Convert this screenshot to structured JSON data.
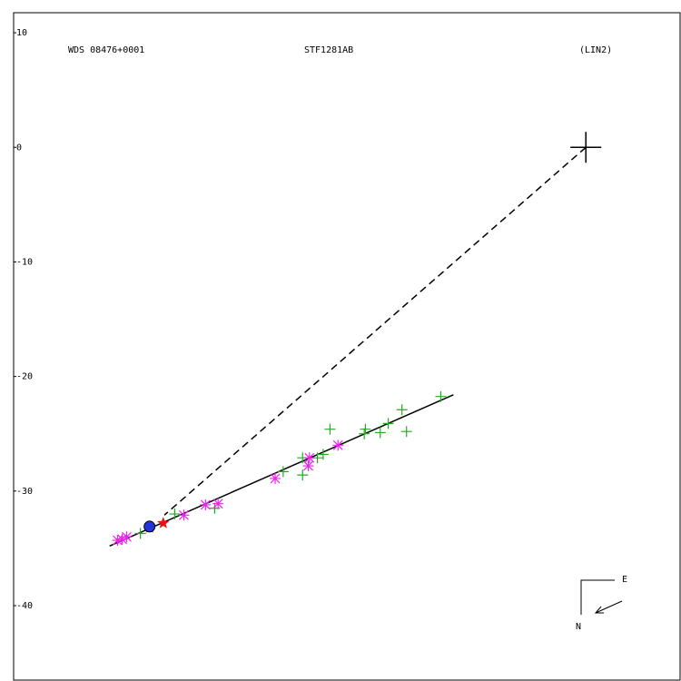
{
  "chart_data": {
    "type": "scatter",
    "labels": [
      "WDS 08476+0001",
      "STF1281AB",
      "(LIN2)"
    ],
    "xlim": [
      -50.1,
      8.25
    ],
    "ylim": [
      -46.5,
      11.75
    ],
    "yticks": [
      10,
      0,
      -10,
      -20,
      -30,
      -40
    ],
    "primary": {
      "x": 0,
      "y": 0,
      "color": "#000000"
    },
    "series": [
      {
        "marker": "plus",
        "color": "#22aa22",
        "x": [
          -12.7,
          -16.1,
          -15.7,
          -17.3,
          -18.0,
          -19.3,
          -19.4,
          -22.4,
          -23.0,
          -23.5,
          -24.8,
          -24.8,
          -26.5,
          -32.5,
          -36.0,
          -39.0
        ],
        "values": [
          -21.75,
          -22.9,
          -24.8,
          -24.1,
          -24.9,
          -24.6,
          -25.0,
          -24.6,
          -26.8,
          -27.1,
          -27.1,
          -28.6,
          -28.3,
          -31.5,
          -32.0,
          -33.7
        ]
      },
      {
        "marker": "asterisk",
        "color": "#ee22ee",
        "x": [
          -21.7,
          -24.2,
          -24.3,
          -27.2,
          -32.2,
          -33.3,
          -35.2,
          -40.2,
          -40.6,
          -41.0
        ],
        "values": [
          -26.0,
          -27.1,
          -27.8,
          -28.9,
          -31.1,
          -31.2,
          -32.1,
          -34.0,
          -34.2,
          -34.3
        ]
      },
      {
        "marker": "star",
        "color": "#ee1111",
        "x": [
          -37.0,
          -38.2
        ],
        "values": [
          -32.8,
          -33.2
        ]
      },
      {
        "marker": "circle",
        "color": "#2233dd",
        "x": [
          -38.2
        ],
        "values": [
          -33.1
        ]
      }
    ],
    "fit_line": {
      "color": "#000000",
      "x": [
        -41.7,
        -11.6
      ],
      "values": [
        -34.8,
        -21.6
      ]
    },
    "node_line": {
      "color": "#000000",
      "x": [
        0,
        -36.9
      ],
      "values": [
        0,
        -32.1
      ]
    },
    "compass": {
      "east": "E",
      "north": "N"
    }
  }
}
